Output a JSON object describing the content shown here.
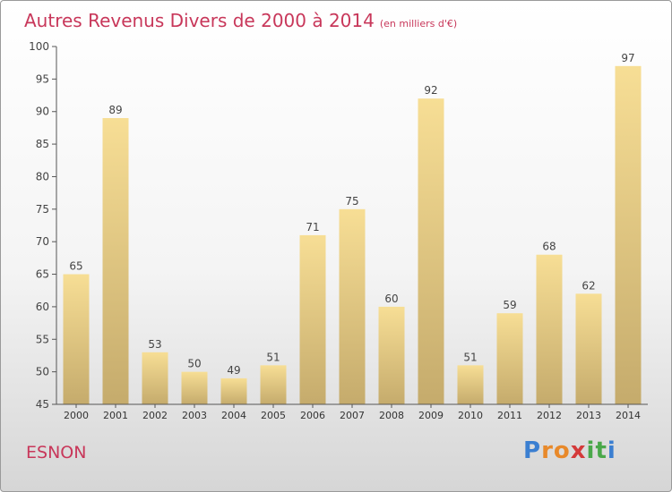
{
  "header": {
    "title": "Autres Revenus Divers de 2000 à 2014",
    "subtitle": "(en milliers d'€)"
  },
  "footer": {
    "location": "ESNON",
    "logo_letters": [
      "P",
      "r",
      "o",
      "x",
      "i",
      "t",
      "i"
    ],
    "logo_colors": [
      "#3b7fd1",
      "#e8892a",
      "#e8892a",
      "#d43a3a",
      "#4aa84a",
      "#4aa84a",
      "#3b7fd1"
    ]
  },
  "chart_data": {
    "type": "bar",
    "categories": [
      "2000",
      "2001",
      "2002",
      "2003",
      "2004",
      "2005",
      "2006",
      "2007",
      "2008",
      "2009",
      "2010",
      "2011",
      "2012",
      "2013",
      "2014"
    ],
    "values": [
      65,
      89,
      53,
      50,
      49,
      51,
      71,
      75,
      60,
      92,
      51,
      59,
      68,
      62,
      97
    ],
    "ylim": [
      45,
      100
    ],
    "yticks": [
      45,
      50,
      55,
      60,
      65,
      70,
      75,
      80,
      85,
      90,
      95,
      100
    ],
    "grid": false,
    "bar_color_top": "#f7de95",
    "bar_color_bottom": "#c5ab6c"
  }
}
